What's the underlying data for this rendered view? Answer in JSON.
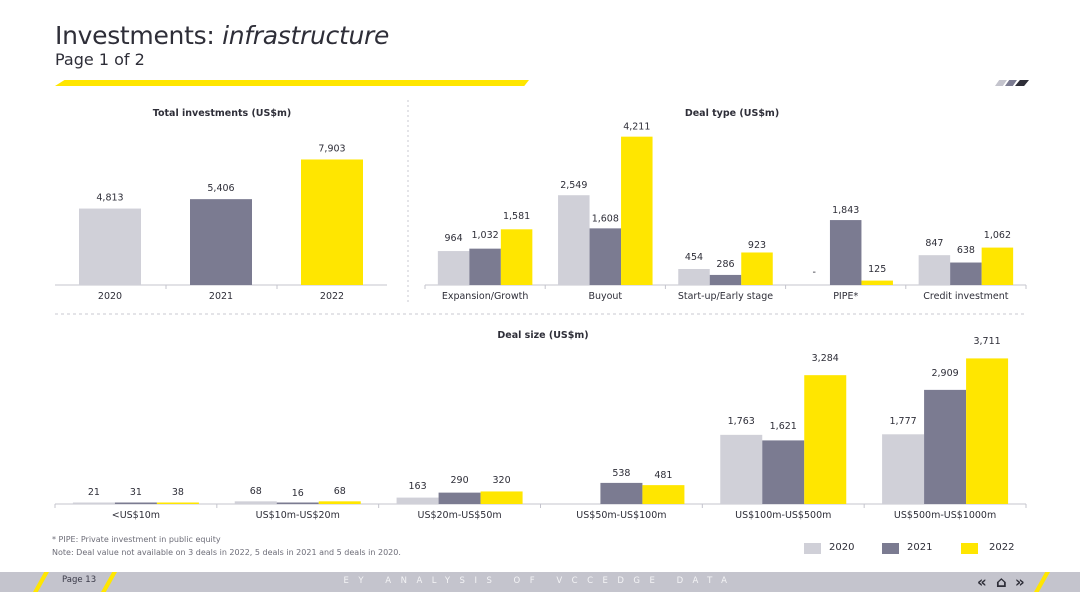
{
  "header": {
    "title_plain": "Investments: ",
    "title_italic": "infrastructure",
    "subtitle": "Page 1 of 2"
  },
  "colors": {
    "y2020": "#d0d0d8",
    "y2021": "#7b7b91",
    "y2022": "#ffe600",
    "text": "#2e2e38",
    "axis": "#c4c4cd"
  },
  "chart_data": [
    {
      "type": "bar",
      "title": "Total investments (US$m)",
      "categories": [
        "2020",
        "2021",
        "2022"
      ],
      "values": [
        4813,
        5406,
        7903
      ],
      "labels": [
        "4,813",
        "5,406",
        "7,903"
      ],
      "ylim": [
        0,
        8500
      ]
    },
    {
      "type": "bar",
      "title": "Deal type (US$m)",
      "categories": [
        "Expansion/Growth",
        "Buyout",
        "Start-up/Early stage",
        "PIPE*",
        "Credit investment"
      ],
      "ylim": [
        0,
        4400
      ],
      "series": [
        {
          "name": "2020",
          "values": [
            964,
            2549,
            454,
            0,
            847
          ],
          "labels": [
            "964",
            "2,549",
            "454",
            "-",
            "847"
          ]
        },
        {
          "name": "2021",
          "values": [
            1032,
            1608,
            286,
            1843,
            638
          ],
          "labels": [
            "1,032",
            "1,608",
            "286",
            "1,843",
            "638"
          ]
        },
        {
          "name": "2022",
          "values": [
            1581,
            4211,
            923,
            125,
            1062
          ],
          "labels": [
            "1,581",
            "4,211",
            "923",
            "125",
            "1,062"
          ]
        }
      ]
    },
    {
      "type": "bar",
      "title": "Deal size (US$m)",
      "categories": [
        "<US$10m",
        "US$10m-US$20m",
        "US$20m-US$50m",
        "US$50m-US$100m",
        "US$100m-US$500m",
        "US$500m-US$1000m"
      ],
      "ylim": [
        0,
        3900
      ],
      "series": [
        {
          "name": "2020",
          "values": [
            21,
            68,
            163,
            0,
            1763,
            1777
          ],
          "labels": [
            "21",
            "68",
            "163",
            "",
            "1,763",
            "1,777"
          ]
        },
        {
          "name": "2021",
          "values": [
            31,
            16,
            290,
            538,
            1621,
            2909
          ],
          "labels": [
            "31",
            "16",
            "290",
            "538",
            "1,621",
            "2,909"
          ]
        },
        {
          "name": "2022",
          "values": [
            38,
            68,
            320,
            481,
            3284,
            3711
          ],
          "labels": [
            "38",
            "68",
            "320",
            "481",
            "3,284",
            "3,711"
          ]
        }
      ]
    }
  ],
  "legend": [
    {
      "name": "2020"
    },
    {
      "name": "2021"
    },
    {
      "name": "2022"
    }
  ],
  "notes": {
    "footnote": "* PIPE: Private investment in public equity",
    "note": "Note: Deal value not available on 3 deals in 2022, 5 deals in 2021 and 5 deals in 2020."
  },
  "footer": {
    "page": "Page 13",
    "center": "EY ANALYSIS OF VCCEDGE DATA",
    "nav_prev": "«",
    "nav_home": "⌂",
    "nav_next": "»"
  }
}
